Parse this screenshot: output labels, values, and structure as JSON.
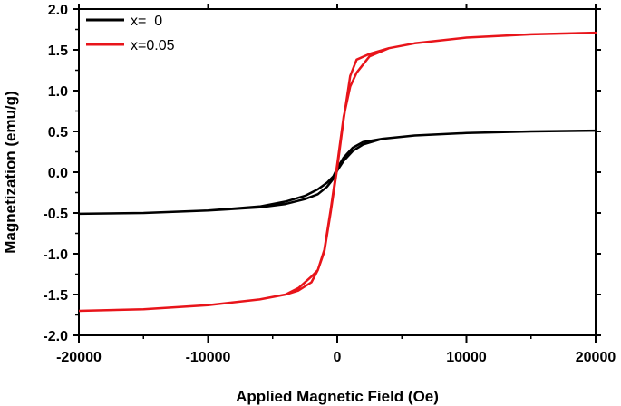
{
  "chart_data": {
    "type": "line",
    "title": "",
    "xlabel": "Applied Magnetic Field (Oe)",
    "ylabel": "Magnetization (emu/g)",
    "xlim": [
      -20000,
      20000
    ],
    "ylim": [
      -2.0,
      2.0
    ],
    "x_ticks": [
      -20000,
      -10000,
      0,
      10000,
      20000
    ],
    "x_tick_labels": [
      "-20000",
      "-10000",
      "0",
      "10000",
      "20000"
    ],
    "y_ticks": [
      -2.0,
      -1.5,
      -1.0,
      -0.5,
      0.0,
      0.5,
      1.0,
      1.5,
      2.0
    ],
    "y_tick_labels": [
      "-2.0",
      "-1.5",
      "-1.0",
      "-0.5",
      "0.0",
      "0.5",
      "1.0",
      "1.5",
      "2.0"
    ],
    "grid": false,
    "legend_position": "top-left",
    "series": [
      {
        "name": "x=  0",
        "color": "#000000",
        "x": [
          -20000,
          -15000,
          -10000,
          -6000,
          -4000,
          -2500,
          -1500,
          -800,
          -300,
          0,
          500,
          1200,
          2000,
          3500,
          6000,
          10000,
          15000,
          20000,
          15000,
          10000,
          6000,
          3500,
          2000,
          1200,
          500,
          0,
          -300,
          -800,
          -1500,
          -2500,
          -4000,
          -6000,
          -10000,
          -15000,
          -20000
        ],
        "y": [
          -0.51,
          -0.5,
          -0.47,
          -0.43,
          -0.39,
          -0.33,
          -0.27,
          -0.18,
          -0.08,
          0.02,
          0.14,
          0.26,
          0.34,
          0.41,
          0.45,
          0.48,
          0.5,
          0.51,
          0.5,
          0.48,
          0.45,
          0.41,
          0.37,
          0.3,
          0.18,
          0.05,
          -0.05,
          -0.13,
          -0.21,
          -0.29,
          -0.36,
          -0.42,
          -0.47,
          -0.5,
          -0.51
        ]
      },
      {
        "name": "x=0.05",
        "color": "#e8141a",
        "x": [
          -20000,
          -15000,
          -10000,
          -6000,
          -4000,
          -3000,
          -2000,
          -1500,
          -1000,
          -500,
          0,
          500,
          1000,
          1500,
          2500,
          4000,
          6000,
          10000,
          15000,
          20000,
          15000,
          10000,
          6000,
          4000,
          2500,
          1500,
          1000,
          500,
          0,
          -500,
          -1000,
          -1500,
          -2000,
          -3000,
          -4000,
          -6000,
          -10000,
          -15000,
          -20000
        ],
        "y": [
          -1.7,
          -1.68,
          -1.63,
          -1.56,
          -1.5,
          -1.45,
          -1.35,
          -1.2,
          -0.95,
          -0.45,
          0.1,
          0.68,
          1.05,
          1.22,
          1.42,
          1.52,
          1.58,
          1.65,
          1.69,
          1.71,
          1.69,
          1.65,
          1.58,
          1.52,
          1.45,
          1.38,
          1.18,
          0.65,
          0.05,
          -0.48,
          -0.97,
          -1.2,
          -1.28,
          -1.42,
          -1.5,
          -1.56,
          -1.63,
          -1.68,
          -1.7
        ]
      }
    ]
  }
}
